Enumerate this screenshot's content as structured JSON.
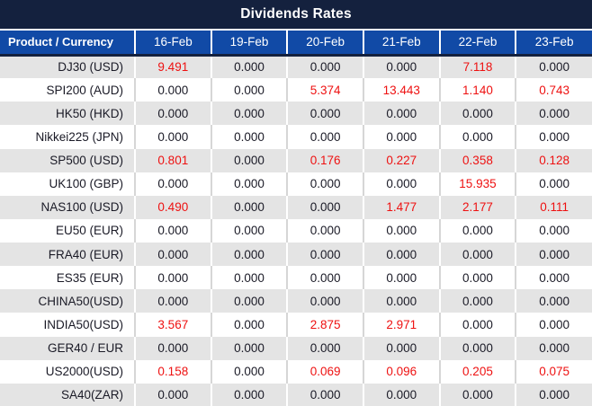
{
  "title": "Dividends Rates",
  "colors": {
    "title_bar_bg": "#14213E",
    "header_row_bg": "#114AA6",
    "row_alt_bg": "#E4E4E4",
    "row_white_bg": "#FFFFFF",
    "highlight_red": "#EE1111",
    "text_dark": "#1A1A26",
    "header_text": "#FFFFFF"
  },
  "table": {
    "product_header": "Product / Currency",
    "date_columns": [
      "16-Feb",
      "19-Feb",
      "20-Feb",
      "21-Feb",
      "22-Feb",
      "23-Feb"
    ],
    "rows": [
      {
        "product": "DJ30 (USD)",
        "values": [
          "9.491",
          "0.000",
          "0.000",
          "0.000",
          "7.118",
          "0.000"
        ],
        "highlight": [
          true,
          false,
          false,
          false,
          true,
          false
        ]
      },
      {
        "product": "SPI200 (AUD)",
        "values": [
          "0.000",
          "0.000",
          "5.374",
          "13.443",
          "1.140",
          "0.743"
        ],
        "highlight": [
          false,
          false,
          true,
          true,
          true,
          true
        ]
      },
      {
        "product": "HK50 (HKD)",
        "values": [
          "0.000",
          "0.000",
          "0.000",
          "0.000",
          "0.000",
          "0.000"
        ],
        "highlight": [
          false,
          false,
          false,
          false,
          false,
          false
        ]
      },
      {
        "product": "Nikkei225 (JPN)",
        "values": [
          "0.000",
          "0.000",
          "0.000",
          "0.000",
          "0.000",
          "0.000"
        ],
        "highlight": [
          false,
          false,
          false,
          false,
          false,
          false
        ]
      },
      {
        "product": "SP500 (USD)",
        "values": [
          "0.801",
          "0.000",
          "0.176",
          "0.227",
          "0.358",
          "0.128"
        ],
        "highlight": [
          true,
          false,
          true,
          true,
          true,
          true
        ]
      },
      {
        "product": "UK100 (GBP)",
        "values": [
          "0.000",
          "0.000",
          "0.000",
          "0.000",
          "15.935",
          "0.000"
        ],
        "highlight": [
          false,
          false,
          false,
          false,
          true,
          false
        ]
      },
      {
        "product": "NAS100 (USD)",
        "values": [
          "0.490",
          "0.000",
          "0.000",
          "1.477",
          "2.177",
          "0.111"
        ],
        "highlight": [
          true,
          false,
          false,
          true,
          true,
          true
        ]
      },
      {
        "product": "EU50 (EUR)",
        "values": [
          "0.000",
          "0.000",
          "0.000",
          "0.000",
          "0.000",
          "0.000"
        ],
        "highlight": [
          false,
          false,
          false,
          false,
          false,
          false
        ]
      },
      {
        "product": "FRA40 (EUR)",
        "values": [
          "0.000",
          "0.000",
          "0.000",
          "0.000",
          "0.000",
          "0.000"
        ],
        "highlight": [
          false,
          false,
          false,
          false,
          false,
          false
        ]
      },
      {
        "product": "ES35 (EUR)",
        "values": [
          "0.000",
          "0.000",
          "0.000",
          "0.000",
          "0.000",
          "0.000"
        ],
        "highlight": [
          false,
          false,
          false,
          false,
          false,
          false
        ]
      },
      {
        "product": "CHINA50(USD)",
        "values": [
          "0.000",
          "0.000",
          "0.000",
          "0.000",
          "0.000",
          "0.000"
        ],
        "highlight": [
          false,
          false,
          false,
          false,
          false,
          false
        ]
      },
      {
        "product": "INDIA50(USD)",
        "values": [
          "3.567",
          "0.000",
          "2.875",
          "2.971",
          "0.000",
          "0.000"
        ],
        "highlight": [
          true,
          false,
          true,
          true,
          false,
          false
        ]
      },
      {
        "product": "GER40 / EUR",
        "values": [
          "0.000",
          "0.000",
          "0.000",
          "0.000",
          "0.000",
          "0.000"
        ],
        "highlight": [
          false,
          false,
          false,
          false,
          false,
          false
        ]
      },
      {
        "product": "US2000(USD)",
        "values": [
          "0.158",
          "0.000",
          "0.069",
          "0.096",
          "0.205",
          "0.075"
        ],
        "highlight": [
          true,
          false,
          true,
          true,
          true,
          true
        ]
      },
      {
        "product": "SA40(ZAR)",
        "values": [
          "0.000",
          "0.000",
          "0.000",
          "0.000",
          "0.000",
          "0.000"
        ],
        "highlight": [
          false,
          false,
          false,
          false,
          false,
          false
        ]
      }
    ]
  }
}
